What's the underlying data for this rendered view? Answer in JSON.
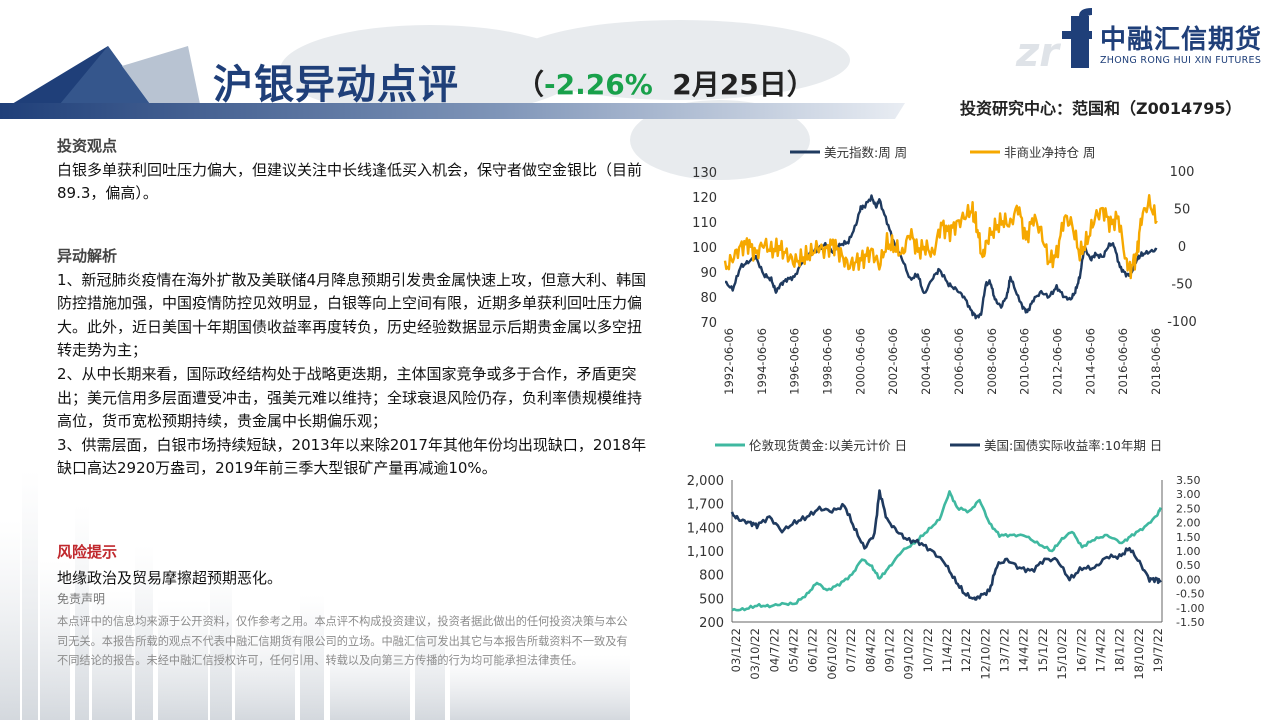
{
  "header": {
    "title": "沪银异动点评",
    "subtitle_open": "（",
    "change": "-2.26%",
    "date": "2月25日）",
    "research_center": "投资研究中心：范国和（Z0014795）",
    "logo_cn": "中融汇信期货",
    "logo_en": "ZHONG RONG HUI XIN FUTURES",
    "colors": {
      "navy": "#1f3f79",
      "green": "#19a14b",
      "risk_red": "#c0282d"
    }
  },
  "body": {
    "view_heading": "投资观点",
    "view_text": "白银多单获利回吐压力偏大，但建议关注中长线逢低买入机会，保守者做空金银比（目前89.3，偏高）。",
    "analysis_heading": "异动解析",
    "analysis_points": [
      "1、新冠肺炎疫情在海外扩散及美联储4月降息预期引发贵金属快速上攻，但意大利、韩国防控措施加强，中国疫情防控见效明显，白银等向上空间有限，近期多单获利回吐压力偏大。此外，近日美国十年期国债收益率再度转负，历史经验数据显示后期贵金属以多空扭转走势为主；",
      "2、从中长期来看，国际政经结构处于战略更迭期，主体国家竞争或多于合作，矛盾更突出；美元信用多层面遭受冲击，强美元难以维持；全球衰退风险仍存，负利率债规模维持高位，货币宽松预期持续，贵金属中长期偏乐观；",
      "3、供需层面，白银市场持续短缺，2013年以来除2017年其他年份均出现缺口，2018年缺口高达2920万盎司，2019年前三季大型银矿产量再减逾10%。"
    ],
    "risk_heading": "风险提示",
    "risk_text": "地缘政治及贸易摩擦超预期恶化。",
    "disclaimer_heading": "免责声明",
    "disclaimer_text": "本点评中的信息均来源于公开资料，仅作参考之用。本点评不构成投资建议，投资者据此做出的任何投资决策与本公司无关。本报告所载的观点不代表中融汇信期货有限公司的立场。中融汇信可发出其它与本报告所载资料不一致及有不同结论的报告。未经中融汇信授权许可，任何引用、转载以及向第三方传播的行为均可能承担法律责任。"
  },
  "chart_data": [
    {
      "type": "line",
      "legend": [
        "美元指数:周 周",
        "非商业净持仓 周"
      ],
      "legend_placement": "top",
      "grid": false,
      "x_ticks": [
        "1992-06-06",
        "1994-06-06",
        "1996-06-06",
        "1998-06-06",
        "2000-06-06",
        "2002-06-06",
        "2004-06-06",
        "2006-06-06",
        "2008-06-06",
        "2010-06-06",
        "2012-06-06",
        "2014-06-06",
        "2016-06-06",
        "2018-06-06"
      ],
      "x_range": [
        1992.0,
        2020.2
      ],
      "y_left": {
        "ticks": [
          130,
          120,
          110,
          100,
          90,
          80,
          70
        ],
        "range": [
          70,
          130
        ]
      },
      "y_right": {
        "ticks": [
          100,
          50,
          0,
          -50,
          -100
        ],
        "range": [
          -100,
          100
        ]
      },
      "series": [
        {
          "name": "美元指数:周 周",
          "axis": "left",
          "color": "#1f3a5f",
          "x": [
            1992.0,
            1992.5,
            1993.0,
            1993.5,
            1994.0,
            1994.5,
            1995.0,
            1995.3,
            1995.6,
            1996.0,
            1996.5,
            1997.0,
            1997.5,
            1998.0,
            1998.5,
            1999.0,
            1999.5,
            2000.0,
            2000.5,
            2000.8,
            2001.0,
            2001.5,
            2001.8,
            2002.0,
            2002.5,
            2003.0,
            2003.5,
            2004.0,
            2004.5,
            2004.9,
            2005.5,
            2005.9,
            2006.5,
            2007.0,
            2007.5,
            2008.0,
            2008.3,
            2008.6,
            2008.9,
            2009.2,
            2009.5,
            2009.9,
            2010.3,
            2010.5,
            2011.0,
            2011.3,
            2011.6,
            2012.0,
            2012.5,
            2013.0,
            2013.5,
            2014.0,
            2014.4,
            2014.7,
            2015.0,
            2015.3,
            2015.7,
            2016.0,
            2016.5,
            2016.9,
            2017.2,
            2017.6,
            2018.0,
            2018.3,
            2018.7,
            2019.0,
            2019.5,
            2020.0
          ],
          "y": [
            86,
            83,
            92,
            94,
            96,
            89,
            87,
            82,
            85,
            87,
            88,
            94,
            97,
            99,
            101,
            98,
            101,
            102,
            109,
            116,
            116,
            120,
            116,
            119,
            110,
            101,
            95,
            87,
            89,
            81,
            88,
            91,
            85,
            83,
            80,
            74,
            72,
            73,
            85,
            86,
            79,
            76,
            81,
            88,
            80,
            76,
            74,
            79,
            82,
            80,
            84,
            80,
            79,
            82,
            88,
            100,
            95,
            97,
            96,
            101,
            101,
            92,
            89,
            89,
            95,
            97,
            98,
            99
          ]
        },
        {
          "name": "非商业净持仓 周",
          "axis": "right",
          "color": "#f6a800",
          "x": [
            1992.0,
            1992.5,
            1993.0,
            1993.5,
            1994.0,
            1994.5,
            1995.0,
            1995.5,
            1996.0,
            1996.5,
            1997.0,
            1997.5,
            1998.0,
            1998.5,
            1999.0,
            1999.5,
            2000.0,
            2000.5,
            2001.0,
            2001.5,
            2002.0,
            2002.5,
            2003.0,
            2003.5,
            2004.0,
            2004.5,
            2005.0,
            2005.5,
            2006.0,
            2006.5,
            2007.0,
            2007.5,
            2008.0,
            2008.3,
            2008.7,
            2009.0,
            2009.5,
            2010.0,
            2010.5,
            2011.0,
            2011.5,
            2012.0,
            2012.5,
            2013.0,
            2013.5,
            2014.0,
            2014.5,
            2015.0,
            2015.5,
            2016.0,
            2016.5,
            2017.0,
            2017.5,
            2018.0,
            2018.3,
            2018.7,
            2019.0,
            2019.5,
            2020.0
          ],
          "y": [
            -30,
            -15,
            0,
            5,
            -10,
            5,
            -5,
            0,
            -10,
            -20,
            -15,
            -10,
            0,
            -5,
            5,
            -10,
            -25,
            -20,
            -15,
            -5,
            -25,
            5,
            0,
            -10,
            20,
            -5,
            0,
            -10,
            30,
            20,
            30,
            40,
            50,
            30,
            -15,
            10,
            25,
            35,
            30,
            55,
            10,
            40,
            20,
            -20,
            -10,
            40,
            30,
            -10,
            10,
            40,
            50,
            30,
            40,
            -20,
            -30,
            -10,
            40,
            60,
            35
          ]
        }
      ]
    },
    {
      "type": "line",
      "legend": [
        "伦敦现货黄金:以美元计价 日",
        "美国:国债实际收益率:10年期 日"
      ],
      "legend_placement": "top",
      "grid": false,
      "x_ticks": [
        "03/1/22",
        "03/10/22",
        "04/7/22",
        "05/4/22",
        "06/1/22",
        "06/10/22",
        "07/7/22",
        "08/4/22",
        "09/1/22",
        "09/10/22",
        "10/7/22",
        "11/4/22",
        "12/1/22",
        "12/10/22",
        "13/7/22",
        "14/4/22",
        "15/1/22",
        "15/10/22",
        "16/7/22",
        "17/4/22",
        "18/1/22",
        "18/10/22",
        "19/7/22"
      ],
      "x_range": [
        2003.0,
        2020.2
      ],
      "y_left": {
        "ticks": [
          "2,000",
          "1,700",
          "1,400",
          "1,100",
          "800",
          "500",
          "200"
        ],
        "range": [
          200,
          2000
        ]
      },
      "y_right": {
        "ticks": [
          "3.50",
          "3.00",
          "2.50",
          "2.00",
          "1.50",
          "1.00",
          "0.50",
          "0.00",
          "-0.50",
          "-1.00",
          "-1.50"
        ],
        "range": [
          -1.5,
          3.5
        ]
      },
      "series": [
        {
          "name": "伦敦现货黄金:以美元计价 日",
          "axis": "left",
          "color": "#3fb8a0",
          "x": [
            2003.0,
            2003.5,
            2004.0,
            2004.5,
            2005.0,
            2005.5,
            2006.0,
            2006.4,
            2006.8,
            2007.3,
            2007.8,
            2008.2,
            2008.6,
            2008.9,
            2009.3,
            2009.8,
            2010.3,
            2010.8,
            2011.3,
            2011.7,
            2012.0,
            2012.5,
            2012.9,
            2013.3,
            2013.7,
            2014.2,
            2014.7,
            2015.2,
            2015.8,
            2016.2,
            2016.6,
            2017.0,
            2017.5,
            2018.0,
            2018.6,
            2019.0,
            2019.5,
            2020.0,
            2020.15
          ],
          "y": [
            350,
            360,
            410,
            400,
            430,
            430,
            550,
            700,
            600,
            680,
            800,
            1000,
            900,
            750,
            900,
            1100,
            1200,
            1350,
            1500,
            1850,
            1650,
            1600,
            1750,
            1450,
            1300,
            1300,
            1300,
            1200,
            1100,
            1250,
            1350,
            1150,
            1250,
            1300,
            1200,
            1300,
            1400,
            1550,
            1650
          ]
        },
        {
          "name": "美国:国债实际收益率:10年期 日",
          "axis": "right",
          "color": "#1f3a5f",
          "x": [
            2003.0,
            2003.3,
            2003.7,
            2004.0,
            2004.5,
            2005.0,
            2005.5,
            2006.0,
            2006.5,
            2007.0,
            2007.5,
            2007.9,
            2008.3,
            2008.7,
            2008.9,
            2009.2,
            2009.6,
            2010.0,
            2010.5,
            2011.0,
            2011.5,
            2011.9,
            2012.3,
            2012.7,
            2012.9,
            2013.3,
            2013.6,
            2014.0,
            2014.5,
            2015.0,
            2015.5,
            2016.0,
            2016.5,
            2017.0,
            2017.5,
            2018.0,
            2018.5,
            2018.9,
            2019.3,
            2019.7,
            2020.0,
            2020.15
          ],
          "y": [
            2.3,
            2.1,
            2.0,
            1.9,
            2.2,
            1.7,
            2.0,
            2.2,
            2.5,
            2.4,
            2.6,
            1.8,
            1.1,
            1.6,
            3.1,
            2.1,
            1.7,
            1.4,
            1.3,
            1.0,
            0.6,
            0.0,
            -0.5,
            -0.7,
            -0.6,
            -0.4,
            0.5,
            0.7,
            0.4,
            0.3,
            0.7,
            0.7,
            0.0,
            0.4,
            0.4,
            0.8,
            0.8,
            1.1,
            0.6,
            0.0,
            0.0,
            -0.1
          ]
        }
      ]
    }
  ]
}
